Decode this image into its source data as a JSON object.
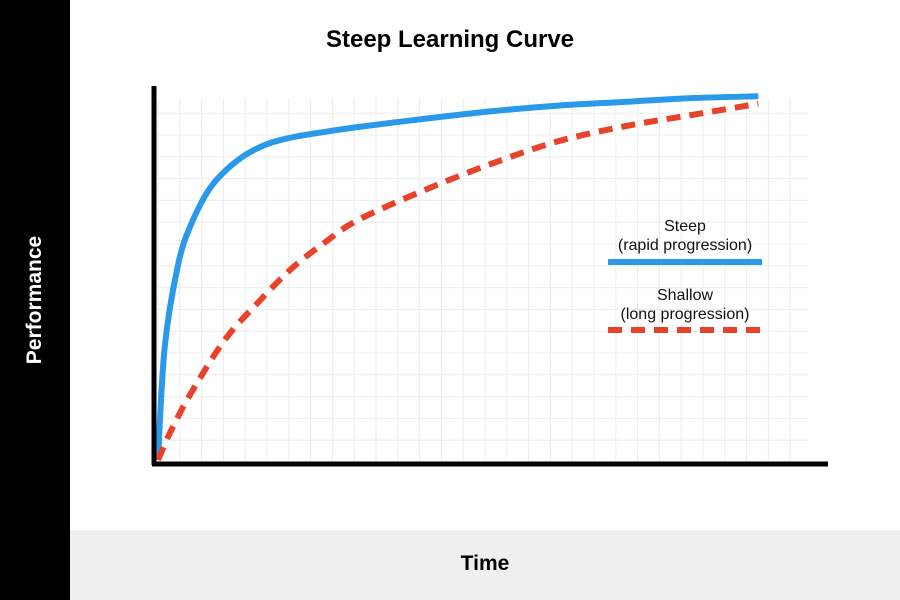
{
  "chart_data": {
    "type": "line",
    "title": "Steep Learning Curve",
    "xlabel": "Time",
    "ylabel": "Performance",
    "grid": true,
    "legend_position": "right",
    "xlim": [
      0,
      100
    ],
    "ylim": [
      0,
      100
    ],
    "series": [
      {
        "name": "Steep",
        "description": "(rapid progression)",
        "color": "#2a9ae8",
        "style": "solid",
        "x": [
          0,
          1,
          3,
          5,
          8,
          12,
          16,
          20,
          25,
          30,
          40,
          50,
          60,
          70,
          80,
          90
        ],
        "y": [
          0,
          30,
          52,
          63,
          73,
          80,
          84,
          86,
          87.5,
          88.8,
          91,
          93,
          94.5,
          95.5,
          96.5,
          97
        ]
      },
      {
        "name": "Shallow",
        "description": "(long progression)",
        "color": "#e8432a",
        "style": "dashed",
        "x": [
          0,
          2,
          5,
          10,
          15,
          20,
          25,
          30,
          40,
          50,
          60,
          70,
          80,
          90
        ],
        "y": [
          0,
          8,
          18,
          32,
          42,
          51,
          58,
          64,
          72,
          79,
          85,
          89,
          92,
          95
        ]
      }
    ]
  }
}
